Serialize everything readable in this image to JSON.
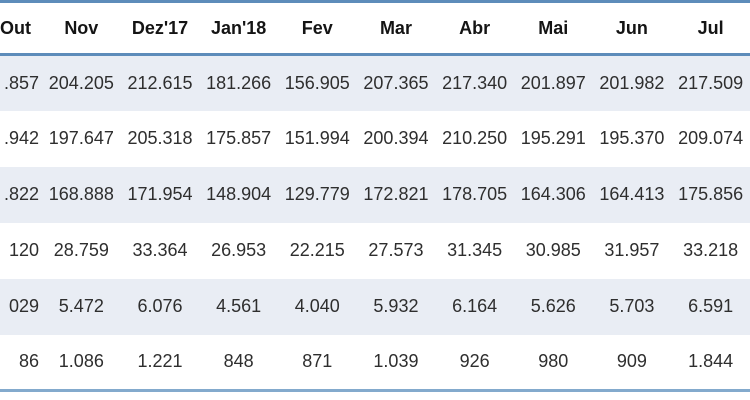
{
  "colors": {
    "top_border": "#5d8cba",
    "header_underline": "#5d8cba",
    "bottom_border": "#83aacd",
    "band_row_background": "#e9edf4",
    "plain_row_background": "#ffffff",
    "header_text": "#141414",
    "cell_text": "#2e2e2e"
  },
  "chart_data": {
    "type": "table",
    "title": "",
    "columns": [
      "Out",
      "Nov",
      "Dez'17",
      "Jan'18",
      "Fev",
      "Mar",
      "Abr",
      "Mai",
      "Jun",
      "Jul"
    ],
    "rows": [
      [
        ".857",
        "204.205",
        "212.615",
        "181.266",
        "156.905",
        "207.365",
        "217.340",
        "201.897",
        "201.982",
        "217.509"
      ],
      [
        ".942",
        "197.647",
        "205.318",
        "175.857",
        "151.994",
        "200.394",
        "210.250",
        "195.291",
        "195.370",
        "209.074"
      ],
      [
        ".822",
        "168.888",
        "171.954",
        "148.904",
        "129.779",
        "172.821",
        "178.705",
        "164.306",
        "164.413",
        "175.856"
      ],
      [
        "120",
        "28.759",
        "33.364",
        "26.953",
        "22.215",
        "27.573",
        "31.345",
        "30.985",
        "31.957",
        "33.218"
      ],
      [
        "029",
        "5.472",
        "6.076",
        "4.561",
        "4.040",
        "5.932",
        "6.164",
        "5.626",
        "5.703",
        "6.591"
      ],
      [
        "86",
        "1.086",
        "1.221",
        "848",
        "871",
        "1.039",
        "926",
        "980",
        "909",
        "1.844"
      ]
    ]
  }
}
